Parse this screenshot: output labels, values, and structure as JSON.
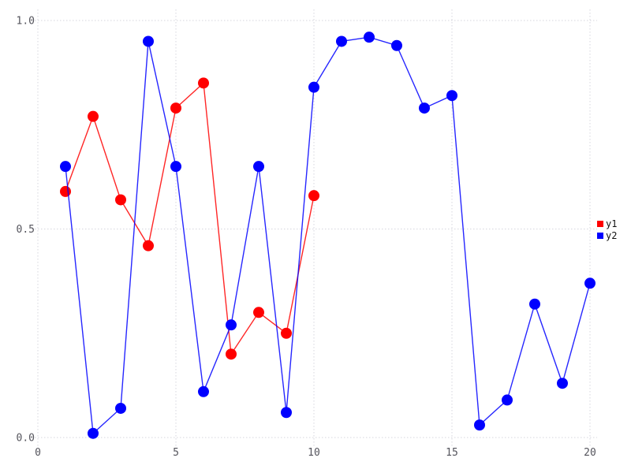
{
  "chart_data": {
    "type": "line",
    "title": "",
    "xlabel": "",
    "ylabel": "",
    "xlim": [
      0,
      20
    ],
    "ylim": [
      0.0,
      1.0
    ],
    "grid": "dotted",
    "grid_color": "#d6d6de",
    "tick_color": "#54545c",
    "background": "#ffffff",
    "xticks": [
      0,
      5,
      10,
      15,
      20
    ],
    "xtick_labels": [
      "0",
      "5",
      "10",
      "15",
      "20"
    ],
    "yticks": [
      0.0,
      0.5,
      1.0
    ],
    "ytick_labels": [
      "0.0",
      "0.5",
      "1.0"
    ],
    "legend_position": "right-outside",
    "series": [
      {
        "name": "y1",
        "color": "#ff0000",
        "x": [
          1,
          2,
          3,
          4,
          5,
          6,
          7,
          8,
          9,
          10
        ],
        "values": [
          0.59,
          0.77,
          0.57,
          0.46,
          0.79,
          0.85,
          0.2,
          0.3,
          0.25,
          0.58
        ]
      },
      {
        "name": "y2",
        "color": "#0000ff",
        "x": [
          1,
          2,
          3,
          4,
          5,
          6,
          7,
          8,
          9,
          10,
          11,
          12,
          13,
          14,
          15,
          16,
          17,
          18,
          19,
          20
        ],
        "values": [
          0.65,
          0.01,
          0.07,
          0.95,
          0.65,
          0.11,
          0.27,
          0.65,
          0.06,
          0.84,
          0.95,
          0.96,
          0.94,
          0.79,
          0.82,
          0.03,
          0.09,
          0.32,
          0.13,
          0.37
        ]
      }
    ],
    "legend": {
      "items": [
        {
          "label": "y1",
          "color": "#ff0000"
        },
        {
          "label": "y2",
          "color": "#0000ff"
        }
      ]
    }
  }
}
